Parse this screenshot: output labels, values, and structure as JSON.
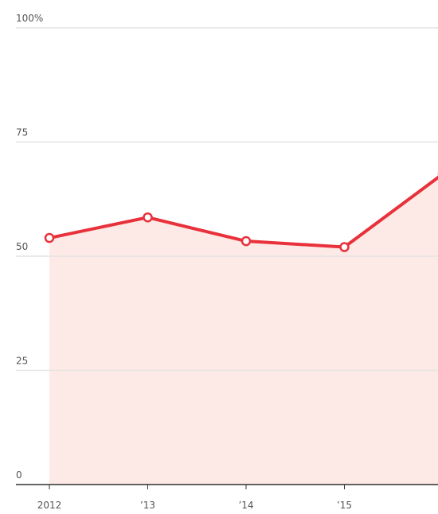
{
  "chart_data": {
    "type": "line",
    "categories": [
      "2012",
      "’13",
      "’14",
      "’15",
      null
    ],
    "series": [
      {
        "color": "#e8313b",
        "values": [
          54,
          58.5,
          53.3,
          52,
          68
        ]
      }
    ],
    "area_color": "#fde9e5",
    "ylim": [
      0,
      100
    ],
    "yticks": [
      0,
      25,
      50,
      75,
      {
        "value": 100,
        "label": "100%"
      }
    ],
    "grid": true
  }
}
